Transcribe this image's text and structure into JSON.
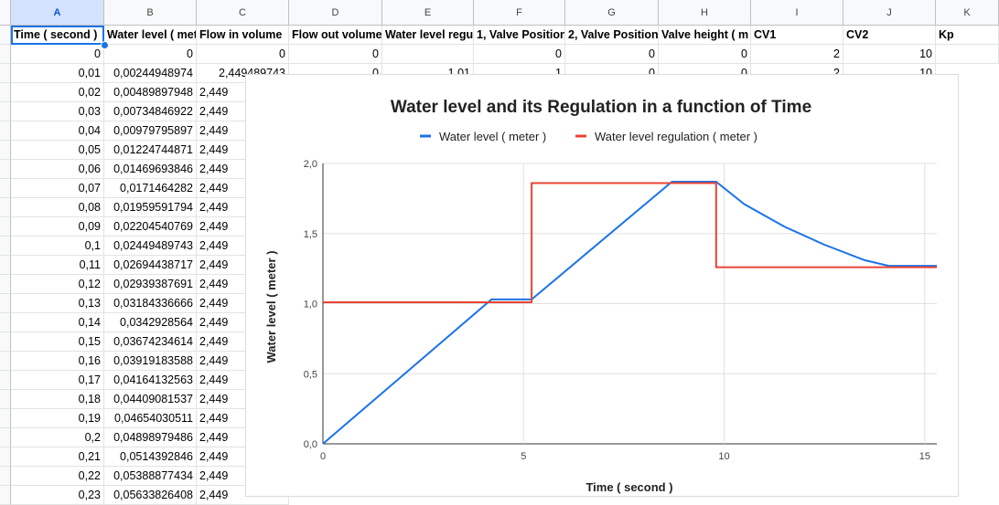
{
  "spreadsheet": {
    "columns": [
      {
        "letter": "A",
        "header": "Time ( second )"
      },
      {
        "letter": "B",
        "header": "Water level ( meter )"
      },
      {
        "letter": "C",
        "header": "Flow in volume"
      },
      {
        "letter": "D",
        "header": "Flow out volume"
      },
      {
        "letter": "E",
        "header": "Water level regulation"
      },
      {
        "letter": "F",
        "header": "1, Valve Position"
      },
      {
        "letter": "G",
        "header": "2, Valve Position"
      },
      {
        "letter": "H",
        "header": "Valve height ( m"
      },
      {
        "letter": "I",
        "header": "CV1"
      },
      {
        "letter": "J",
        "header": "CV2"
      },
      {
        "letter": "K",
        "header": "Kp"
      }
    ],
    "first_row": [
      "0",
      "0",
      "0",
      "0",
      "",
      "0",
      "0",
      "0",
      "2",
      "10",
      ""
    ],
    "rows": [
      [
        "0,01",
        "0,00244948974"
      ],
      [
        "0,02",
        "0,00489897948"
      ],
      [
        "0,03",
        "0,00734846922"
      ],
      [
        "0,04",
        "0,00979795897"
      ],
      [
        "0,05",
        "0,01224744871"
      ],
      [
        "0,06",
        "0,01469693846"
      ],
      [
        "0,07",
        "0,0171464282"
      ],
      [
        "0,08",
        "0,01959591794"
      ],
      [
        "0,09",
        "0,02204540769"
      ],
      [
        "0,1",
        "0,02449489743"
      ],
      [
        "0,11",
        "0,02694438717"
      ],
      [
        "0,12",
        "0,02939387691"
      ],
      [
        "0,13",
        "0,03184336666"
      ],
      [
        "0,14",
        "0,0342928564"
      ],
      [
        "0,15",
        "0,03674234614"
      ],
      [
        "0,16",
        "0,03919183588"
      ],
      [
        "0,17",
        "0,04164132563"
      ],
      [
        "0,18",
        "0,04409081537"
      ],
      [
        "0,19",
        "0,04654030511"
      ],
      [
        "0,2",
        "0,04898979486"
      ],
      [
        "0,21",
        "0,0514392846"
      ],
      [
        "0,22",
        "0,05388877434"
      ],
      [
        "0,23",
        "0,05633826408"
      ]
    ],
    "col_c_value": "2,449",
    "row2_extra": {
      "c": "2,449489743",
      "d": "0",
      "e": "1,01",
      "f": "1",
      "g": "0",
      "h": "0",
      "i": "2",
      "j": "10"
    }
  },
  "chart_data": {
    "type": "line",
    "title": "Water level and its Regulation in a function of Time",
    "xlabel": "Time ( second )",
    "ylabel": "Water level ( meter )",
    "xlim": [
      0,
      15.3
    ],
    "ylim": [
      0,
      2.0
    ],
    "xticks": [
      "0",
      "5",
      "10",
      "15"
    ],
    "yticks": [
      "0,0",
      "0,5",
      "1,0",
      "1,5",
      "2,0"
    ],
    "legend_position": "top",
    "series": [
      {
        "name": "Water level ( meter )",
        "color": "#1a73e8",
        "x": [
          0,
          4.2,
          5.2,
          8.7,
          9.8,
          10.5,
          11.5,
          12.5,
          13.5,
          14.1,
          15.3
        ],
        "y": [
          0,
          1.03,
          1.03,
          1.87,
          1.87,
          1.71,
          1.55,
          1.42,
          1.31,
          1.27,
          1.27
        ]
      },
      {
        "name": "Water level regulation ( meter )",
        "color": "#ea4335",
        "x": [
          0,
          5.2,
          5.2,
          9.8,
          9.8,
          15.3
        ],
        "y": [
          1.01,
          1.01,
          1.86,
          1.86,
          1.26,
          1.26
        ]
      }
    ]
  }
}
